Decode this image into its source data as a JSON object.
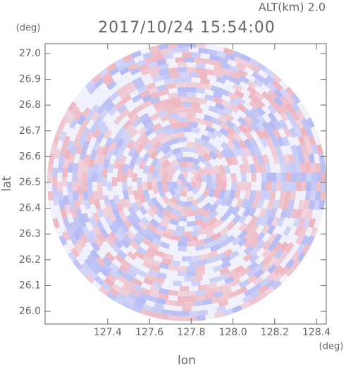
{
  "chart_data": {
    "type": "radar-ppi",
    "title": "2017/10/24 15:54:00",
    "annotation": "ALT(km) 2.0",
    "x_label": "lon",
    "x_unit": "(deg)",
    "y_label": "lat",
    "y_unit": "(deg)",
    "xlim": [
      127.1,
      128.447
    ],
    "ylim": [
      25.951,
      27.038
    ],
    "xticks": [
      127.4,
      127.6,
      127.8,
      {
        "value": 128.0,
        "label": "128.0"
      },
      128.2,
      128.4
    ],
    "yticks": [
      {
        "value": 26.0,
        "label": "26.0"
      },
      26.1,
      26.2,
      26.3,
      26.4,
      26.5,
      26.6,
      26.7,
      26.8,
      26.9,
      {
        "value": 27.0,
        "label": "27.0"
      }
    ]
  }
}
